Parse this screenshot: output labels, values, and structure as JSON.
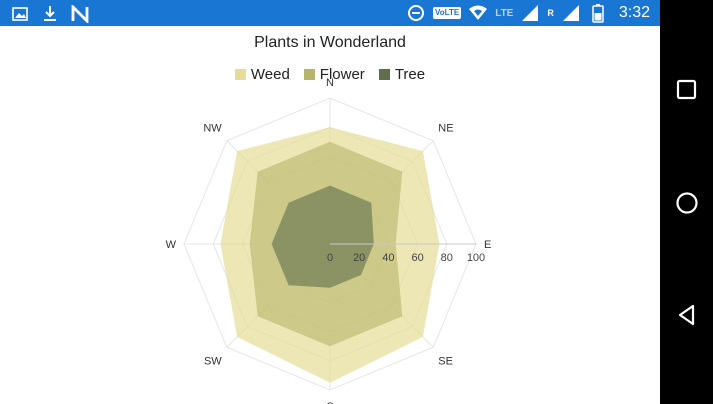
{
  "status_bar": {
    "time": "3:32",
    "volte": "VoLTE",
    "network": "LTE",
    "roaming": "R",
    "icons": [
      "image-icon",
      "download-icon",
      "n-logo-icon",
      "data-saver-icon",
      "wifi-icon",
      "signal-icon",
      "battery-icon"
    ]
  },
  "nav_bar": {
    "icons": [
      "recents-icon",
      "home-icon",
      "back-icon"
    ]
  },
  "colors": {
    "status_bar": "#1976d2",
    "weed": "#e6dc96",
    "flower": "#b7b56a",
    "tree": "#5f6f4e"
  },
  "chart_data": {
    "type": "radar",
    "title": "Plants in Wonderland",
    "categories": [
      "N",
      "NE",
      "E",
      "SE",
      "S",
      "SW",
      "W",
      "NW"
    ],
    "radial_ticks": [
      "0",
      "20",
      "40",
      "60",
      "80",
      "100"
    ],
    "rmax": 100,
    "series": [
      {
        "name": "Weed",
        "values": [
          80,
          90,
          75,
          90,
          95,
          90,
          75,
          90
        ]
      },
      {
        "name": "Flower",
        "values": [
          70,
          70,
          45,
          70,
          70,
          70,
          55,
          70
        ]
      },
      {
        "name": "Tree",
        "values": [
          40,
          40,
          30,
          30,
          30,
          40,
          40,
          40
        ]
      }
    ],
    "legend_position": "top-center"
  }
}
